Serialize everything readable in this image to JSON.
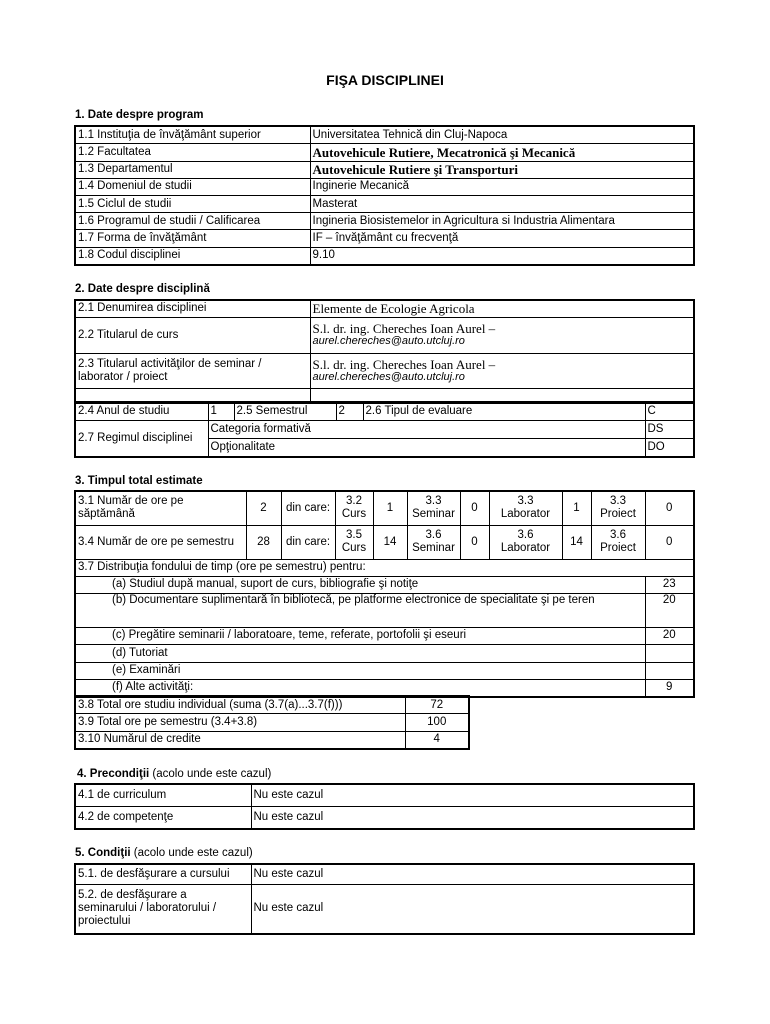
{
  "title": "FIŞA DISCIPLINEI",
  "s1": {
    "heading": "1. Date despre program",
    "rows": [
      [
        "1.1 Instituţia de învăţământ superior",
        "Universitatea Tehnică din Cluj-Napoca"
      ],
      [
        "1.2 Facultatea",
        "Autovehicule Rutiere, Mecatronică şi Mecanică"
      ],
      [
        "1.3 Departamentul",
        "Autovehicule Rutiere şi Transporturi"
      ],
      [
        "1.4 Domeniul de studii",
        "Inginerie Mecanică"
      ],
      [
        "1.5 Ciclul de studii",
        "Masterat"
      ],
      [
        "1.6 Programul de studii / Calificarea",
        "Ingineria Biosistemelor in Agricultura si Industria Alimentara"
      ],
      [
        "1.7 Forma de învăţământ",
        "IF – învăţământ cu frecvenţă"
      ],
      [
        "1.8 Codul disciplinei",
        "9.10"
      ]
    ]
  },
  "s2": {
    "heading": "2. Date despre disciplină",
    "r21": [
      "2.1 Denumirea disciplinei",
      "Elemente de Ecologie Agricola"
    ],
    "r22": [
      "2.2 Titularul de curs",
      "S.l. dr. ing. Chereches Ioan Aurel –",
      "aurel.chereches@auto.utcluj.ro"
    ],
    "r23": [
      "2.3 Titularul activităţilor de seminar / laborator / proiect",
      "S.l. dr. ing. Chereches Ioan Aurel –",
      "aurel.chereches@auto.utcluj.ro"
    ],
    "r24": [
      "2.4 Anul de studiu",
      "1",
      "2.5 Semestrul",
      "2",
      "2.6 Tipul de evaluare",
      "C"
    ],
    "r27": {
      "label": "2.7 Regimul disciplinei",
      "a": "Categoria formativă",
      "av": "DS",
      "b": "Opţionalitate",
      "bv": "DO"
    }
  },
  "s3": {
    "heading": "3. Timpul total estimate",
    "r1": [
      "3.1 Număr de ore pe săptămână",
      "2",
      "din care:",
      "3.2 Curs",
      "1",
      "3.3 Seminar",
      "0",
      "3.3 Laborator",
      "1",
      "3.3 Proiect",
      "0"
    ],
    "r2": [
      "3.4 Număr de ore pe semestru",
      "28",
      "din care:",
      "3.5 Curs",
      "14",
      "3.6 Seminar",
      "0",
      "3.6 Laborator",
      "14",
      "3.6 Proiect",
      "0"
    ],
    "dist": "3.7 Distribuţia fondului de timp (ore pe semestru) pentru:",
    "items": [
      [
        "(a) Studiul după manual, suport de curs, bibliografie şi notiţe",
        "23"
      ],
      [
        "(b) Documentare suplimentară în bibliotecă, pe platforme electronice de specialitate şi pe teren",
        "20"
      ],
      [
        "(c) Pregătire seminarii / laboratoare, teme, referate, portofolii şi eseuri",
        "20"
      ],
      [
        "(d) Tutoriat",
        ""
      ],
      [
        "(e) Examinări",
        ""
      ],
      [
        "(f) Alte activităţi:",
        "9"
      ]
    ],
    "totals": [
      [
        "3.8 Total ore studiu individual (suma (3.7(a)...3.7(f)))",
        "72"
      ],
      [
        "3.9 Total ore pe semestru (3.4+3.8)",
        "100"
      ],
      [
        "3.10 Numărul de credite",
        "4"
      ]
    ]
  },
  "s4": {
    "heading": "4. Precondiţii",
    "note": "(acolo unde este cazul)",
    "rows": [
      [
        "4.1 de curriculum",
        "Nu este cazul"
      ],
      [
        "4.2 de competenţe",
        "Nu este cazul"
      ]
    ]
  },
  "s5": {
    "heading": "5. Condiţii",
    "note": "(acolo unde este cazul)",
    "rows": [
      [
        "5.1. de desfăşurare a cursului",
        "Nu este cazul"
      ],
      [
        "5.2. de desfăşurare a seminarului / laboratorului / proiectului",
        "Nu este cazul"
      ]
    ]
  }
}
